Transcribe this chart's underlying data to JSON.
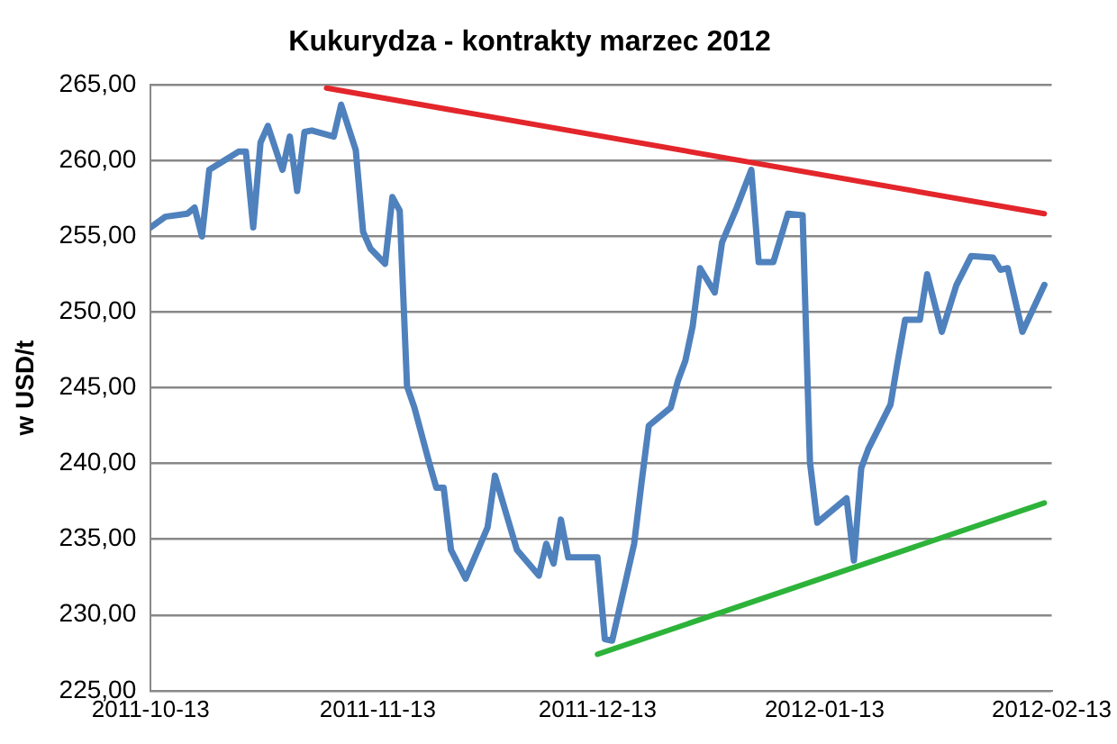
{
  "chart_data": {
    "type": "line",
    "title": "Kukurydza - kontrakty marzec 2012",
    "ylabel": "w USD/t",
    "x": [
      "2011-10-13",
      "2011-10-15",
      "2011-10-18",
      "2011-10-19",
      "2011-10-20",
      "2011-10-21",
      "2011-10-25",
      "2011-10-26",
      "2011-10-27",
      "2011-10-28",
      "2011-10-29",
      "2011-10-31",
      "2011-11-01",
      "2011-11-02",
      "2011-11-03",
      "2011-11-04",
      "2011-11-07",
      "2011-11-08",
      "2011-11-10",
      "2011-11-11",
      "2011-11-12",
      "2011-11-14",
      "2011-11-15",
      "2011-11-16",
      "2011-11-17",
      "2011-11-18",
      "2011-11-20",
      "2011-11-21",
      "2011-11-22",
      "2011-11-23",
      "2011-11-25",
      "2011-11-28",
      "2011-11-29",
      "2011-12-02",
      "2011-12-05",
      "2011-12-06",
      "2011-12-07",
      "2011-12-08",
      "2011-12-09",
      "2011-12-13",
      "2011-12-14",
      "2011-12-15",
      "2011-12-18",
      "2011-12-19",
      "2011-12-20",
      "2011-12-23",
      "2011-12-24",
      "2011-12-25",
      "2011-12-26",
      "2011-12-27",
      "2011-12-29",
      "2011-12-30",
      "2012-01-01",
      "2012-01-03",
      "2012-01-04",
      "2012-01-06",
      "2012-01-08",
      "2012-01-10",
      "2012-01-11",
      "2012-01-12",
      "2012-01-16",
      "2012-01-17",
      "2012-01-18",
      "2012-01-19",
      "2012-01-22",
      "2012-01-23",
      "2012-01-24",
      "2012-01-26",
      "2012-01-27",
      "2012-01-29",
      "2012-01-31",
      "2012-02-02",
      "2012-02-05",
      "2012-02-06",
      "2012-02-07",
      "2012-02-09",
      "2012-02-12"
    ],
    "series": [
      {
        "color": "#4f81bd",
        "values": [
          255.6,
          256.3,
          256.5,
          256.9,
          255.0,
          259.4,
          260.6,
          260.6,
          255.6,
          261.2,
          262.3,
          259.4,
          261.6,
          258.0,
          261.9,
          262.0,
          261.6,
          263.7,
          260.7,
          255.3,
          254.2,
          253.2,
          257.6,
          256.7,
          245.1,
          243.7,
          240.1,
          238.4,
          238.4,
          234.3,
          232.4,
          235.8,
          239.2,
          234.3,
          232.6,
          234.7,
          233.4,
          236.3,
          233.8,
          233.8,
          228.4,
          228.3,
          234.7,
          238.7,
          242.5,
          243.7,
          245.5,
          246.8,
          249.1,
          252.9,
          251.3,
          254.6,
          256.9,
          259.4,
          253.3,
          253.3,
          256.5,
          256.4,
          240.1,
          236.1,
          237.7,
          233.6,
          239.7,
          241.0,
          243.9,
          246.8,
          249.5,
          249.5,
          252.5,
          248.7,
          251.8,
          253.7,
          253.6,
          252.8,
          252.9,
          248.7,
          251.8
        ]
      },
      {
        "type": "line",
        "color": "#e3262b",
        "x": [
          "2011-11-06",
          "2012-02-12"
        ],
        "values": [
          264.8,
          256.5
        ]
      },
      {
        "type": "line",
        "color": "#2db33a",
        "x": [
          "2011-12-13",
          "2012-02-12"
        ],
        "values": [
          227.4,
          237.4
        ]
      }
    ],
    "xlim": [
      "2011-10-13",
      "2012-02-13"
    ],
    "xticks": [
      "2011-10-13",
      "2011-11-13",
      "2011-12-13",
      "2012-01-13",
      "2012-02-13"
    ],
    "ylim": [
      225,
      265
    ],
    "yticks": [
      {
        "value": 225,
        "label": "225,00"
      },
      {
        "value": 230,
        "label": "230,00"
      },
      {
        "value": 235,
        "label": "235,00"
      },
      {
        "value": 240,
        "label": "240,00"
      },
      {
        "value": 245,
        "label": "245,00"
      },
      {
        "value": 250,
        "label": "250,00"
      },
      {
        "value": 255,
        "label": "255,00"
      },
      {
        "value": 260,
        "label": "260,00"
      },
      {
        "value": 265,
        "label": "265,00"
      }
    ],
    "grid": "y",
    "legend": false,
    "marker": "none",
    "line_style": "solid"
  }
}
